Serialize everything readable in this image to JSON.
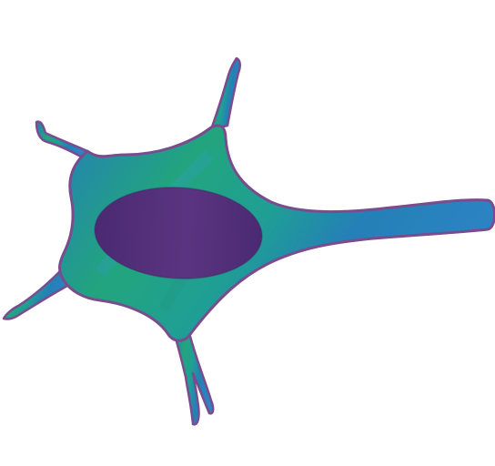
{
  "subject": "neuron-cell-illustration",
  "colors": {
    "background": "#ffffff",
    "membrane_outline": "#7a4c8e",
    "body_blue": "#2480b6",
    "body_teal": "#1f9f94",
    "body_green": "#22a57d",
    "axon_blue": "#2b83c2",
    "nucleus_purple": "#4b2a72",
    "nucleus_highlight": "#5b3480"
  },
  "parts": [
    "cell-body",
    "dendrites",
    "axon",
    "nucleus"
  ]
}
